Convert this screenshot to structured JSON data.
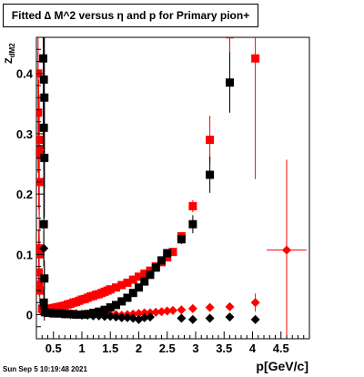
{
  "title": "Fitted ∆ M^2 versus η and p for Primary pion+",
  "datestamp": "Sun Sep  5 10:19:48 2021",
  "chart_data": {
    "type": "scatter",
    "title": "Fitted ∆ M^2 versus η and p for Primary pion+",
    "xlabel": "p[GeV/c]",
    "ylabel": "Z_dM2",
    "xlim": [
      0.2,
      5.0
    ],
    "ylim": [
      -0.04,
      0.46
    ],
    "x_ticks": [
      0.5,
      1,
      1.5,
      2,
      2.5,
      3,
      3.5,
      4,
      4.5
    ],
    "x_tick_labels": [
      "0.5",
      "1",
      "1.5",
      "2",
      "2.5",
      "3",
      "3.5",
      "4",
      "4.5"
    ],
    "y_ticks": [
      0,
      0.1,
      0.2,
      0.3,
      0.4
    ],
    "y_tick_labels": [
      "0",
      "0.1",
      "0.2",
      "0.3",
      "0.4"
    ],
    "grid": false,
    "legend": "none",
    "colors": {
      "red": "#ff0000",
      "black": "#000000"
    },
    "series": [
      {
        "color": "red",
        "marker": "square",
        "points": [
          {
            "x": 0.23,
            "y": 0.4,
            "ey": 0.1
          },
          {
            "x": 0.23,
            "y": 0.335,
            "ey": 0.1
          },
          {
            "x": 0.24,
            "y": 0.29,
            "ey": 0.1
          },
          {
            "x": 0.24,
            "y": 0.275,
            "ey": 0.1
          },
          {
            "x": 0.25,
            "y": 0.265,
            "ey": 0.1
          },
          {
            "x": 0.25,
            "y": 0.22,
            "ey": 0.1
          },
          {
            "x": 0.24,
            "y": 0.11,
            "ey": 0.03
          },
          {
            "x": 0.25,
            "y": 0.1,
            "ey": 0.03
          },
          {
            "x": 0.24,
            "y": 0.07,
            "ey": 0.02
          },
          {
            "x": 0.25,
            "y": 0.05,
            "ey": 0.02
          },
          {
            "x": 0.26,
            "y": 0.04,
            "ey": 0.02
          },
          {
            "x": 0.3,
            "y": 0.01
          },
          {
            "x": 0.35,
            "y": 0.01
          },
          {
            "x": 0.4,
            "y": 0.01
          },
          {
            "x": 0.45,
            "y": 0.01
          },
          {
            "x": 0.5,
            "y": 0.011
          },
          {
            "x": 0.55,
            "y": 0.012
          },
          {
            "x": 0.6,
            "y": 0.013
          },
          {
            "x": 0.65,
            "y": 0.014
          },
          {
            "x": 0.7,
            "y": 0.015
          },
          {
            "x": 0.75,
            "y": 0.017
          },
          {
            "x": 0.8,
            "y": 0.018
          },
          {
            "x": 0.85,
            "y": 0.02
          },
          {
            "x": 0.9,
            "y": 0.021
          },
          {
            "x": 0.95,
            "y": 0.023
          },
          {
            "x": 1.0,
            "y": 0.025
          },
          {
            "x": 1.05,
            "y": 0.026
          },
          {
            "x": 1.1,
            "y": 0.028
          },
          {
            "x": 1.15,
            "y": 0.03
          },
          {
            "x": 1.2,
            "y": 0.031
          },
          {
            "x": 1.25,
            "y": 0.033
          },
          {
            "x": 1.3,
            "y": 0.034
          },
          {
            "x": 1.35,
            "y": 0.036
          },
          {
            "x": 1.4,
            "y": 0.038
          },
          {
            "x": 1.45,
            "y": 0.04
          },
          {
            "x": 1.5,
            "y": 0.042
          },
          {
            "x": 1.6,
            "y": 0.045
          },
          {
            "x": 1.7,
            "y": 0.049
          },
          {
            "x": 1.8,
            "y": 0.053
          },
          {
            "x": 1.9,
            "y": 0.058
          },
          {
            "x": 2.0,
            "y": 0.063
          },
          {
            "x": 2.1,
            "y": 0.068
          },
          {
            "x": 2.2,
            "y": 0.073
          },
          {
            "x": 2.3,
            "y": 0.08
          },
          {
            "x": 2.4,
            "y": 0.087
          },
          {
            "x": 2.5,
            "y": 0.095
          },
          {
            "x": 2.6,
            "y": 0.104
          },
          {
            "x": 2.75,
            "y": 0.13,
            "ey": 0.006
          },
          {
            "x": 2.95,
            "y": 0.18,
            "ey": 0.01
          },
          {
            "x": 3.25,
            "y": 0.29,
            "ey": 0.04
          },
          {
            "x": 3.6,
            "y": 0.465,
            "ey": 0.1
          },
          {
            "x": 4.05,
            "y": 0.425,
            "ey": 0.2
          }
        ]
      },
      {
        "color": "red",
        "marker": "diamond",
        "points": [
          {
            "x": 0.3,
            "y": 0.005
          },
          {
            "x": 0.4,
            "y": 0.004
          },
          {
            "x": 0.5,
            "y": 0.004
          },
          {
            "x": 0.6,
            "y": 0.003
          },
          {
            "x": 0.7,
            "y": 0.003
          },
          {
            "x": 0.8,
            "y": 0.002
          },
          {
            "x": 0.9,
            "y": 0.002
          },
          {
            "x": 1.0,
            "y": 0.001
          },
          {
            "x": 1.1,
            "y": 0.001
          },
          {
            "x": 1.2,
            "y": 0.0
          },
          {
            "x": 1.3,
            "y": 0.0
          },
          {
            "x": 1.4,
            "y": 0.0
          },
          {
            "x": 1.5,
            "y": 0.0
          },
          {
            "x": 1.6,
            "y": 0.0
          },
          {
            "x": 1.7,
            "y": -0.001
          },
          {
            "x": 1.8,
            "y": 0.0
          },
          {
            "x": 1.9,
            "y": 0.001
          },
          {
            "x": 2.0,
            "y": 0.002
          },
          {
            "x": 2.1,
            "y": 0.003
          },
          {
            "x": 2.2,
            "y": 0.003
          },
          {
            "x": 2.3,
            "y": 0.004
          },
          {
            "x": 2.4,
            "y": 0.005
          },
          {
            "x": 2.5,
            "y": 0.006
          },
          {
            "x": 2.6,
            "y": 0.007
          },
          {
            "x": 2.75,
            "y": 0.008
          },
          {
            "x": 2.95,
            "y": 0.01
          },
          {
            "x": 3.25,
            "y": 0.012
          },
          {
            "x": 3.6,
            "y": 0.013,
            "ey": 0.006
          },
          {
            "x": 4.05,
            "y": 0.02,
            "ey": 0.015
          },
          {
            "x": 4.6,
            "y": 0.107,
            "ey": 0.15,
            "ex": 0.35
          }
        ]
      },
      {
        "color": "black",
        "marker": "square",
        "points": [
          {
            "x": 0.32,
            "y": 0.425,
            "ey": 0.15
          },
          {
            "x": 0.33,
            "y": 0.39,
            "ey": 0.15
          },
          {
            "x": 0.34,
            "y": 0.36,
            "ey": 0.15
          },
          {
            "x": 0.33,
            "y": 0.31,
            "ey": 0.1
          },
          {
            "x": 0.34,
            "y": 0.26,
            "ey": 0.1
          },
          {
            "x": 0.33,
            "y": 0.15,
            "ey": 0.06
          },
          {
            "x": 0.34,
            "y": 0.06,
            "ey": 0.03
          },
          {
            "x": 0.33,
            "y": 0.02,
            "ey": 0.02
          },
          {
            "x": 0.35,
            "y": 0.004
          },
          {
            "x": 0.4,
            "y": 0.003
          },
          {
            "x": 0.45,
            "y": 0.003
          },
          {
            "x": 0.5,
            "y": 0.002
          },
          {
            "x": 0.6,
            "y": 0.002
          },
          {
            "x": 0.7,
            "y": 0.001
          },
          {
            "x": 0.8,
            "y": 0.001
          },
          {
            "x": 0.9,
            "y": 0.0
          },
          {
            "x": 1.0,
            "y": 0.0
          },
          {
            "x": 1.1,
            "y": 0.001
          },
          {
            "x": 1.2,
            "y": 0.003
          },
          {
            "x": 1.3,
            "y": 0.005
          },
          {
            "x": 1.4,
            "y": 0.008
          },
          {
            "x": 1.5,
            "y": 0.012
          },
          {
            "x": 1.6,
            "y": 0.016
          },
          {
            "x": 1.7,
            "y": 0.022
          },
          {
            "x": 1.8,
            "y": 0.028
          },
          {
            "x": 1.9,
            "y": 0.036
          },
          {
            "x": 2.0,
            "y": 0.045
          },
          {
            "x": 2.1,
            "y": 0.055
          },
          {
            "x": 2.2,
            "y": 0.066
          },
          {
            "x": 2.3,
            "y": 0.078
          },
          {
            "x": 2.4,
            "y": 0.09
          },
          {
            "x": 2.5,
            "y": 0.102
          },
          {
            "x": 2.75,
            "y": 0.125,
            "ey": 0.008
          },
          {
            "x": 2.95,
            "y": 0.15,
            "ey": 0.015
          },
          {
            "x": 3.25,
            "y": 0.232,
            "ey": 0.03
          },
          {
            "x": 3.6,
            "y": 0.385,
            "ey": 0.05
          }
        ]
      },
      {
        "color": "black",
        "marker": "diamond",
        "points": [
          {
            "x": 0.33,
            "y": 0.11,
            "ey": 0.03
          },
          {
            "x": 0.34,
            "y": 0.06,
            "ey": 0.02
          },
          {
            "x": 0.34,
            "y": 0.01,
            "ey": 0.02
          },
          {
            "x": 0.4,
            "y": 0.004
          },
          {
            "x": 0.5,
            "y": 0.003
          },
          {
            "x": 0.6,
            "y": 0.002
          },
          {
            "x": 0.7,
            "y": 0.001
          },
          {
            "x": 0.8,
            "y": 0.0
          },
          {
            "x": 0.9,
            "y": 0.0
          },
          {
            "x": 1.0,
            "y": -0.001
          },
          {
            "x": 1.1,
            "y": -0.001
          },
          {
            "x": 1.2,
            "y": -0.002
          },
          {
            "x": 1.3,
            "y": -0.002
          },
          {
            "x": 1.4,
            "y": -0.003
          },
          {
            "x": 1.5,
            "y": -0.003
          },
          {
            "x": 1.6,
            "y": -0.004
          },
          {
            "x": 1.7,
            "y": -0.005
          },
          {
            "x": 1.8,
            "y": -0.005
          },
          {
            "x": 1.9,
            "y": -0.006
          },
          {
            "x": 2.0,
            "y": -0.008
          },
          {
            "x": 2.1,
            "y": -0.005
          },
          {
            "x": 2.2,
            "y": -0.004
          },
          {
            "x": 2.75,
            "y": -0.006
          },
          {
            "x": 2.95,
            "y": -0.008
          },
          {
            "x": 3.25,
            "y": -0.006
          },
          {
            "x": 3.6,
            "y": -0.004
          },
          {
            "x": 4.05,
            "y": -0.008
          }
        ]
      }
    ]
  }
}
